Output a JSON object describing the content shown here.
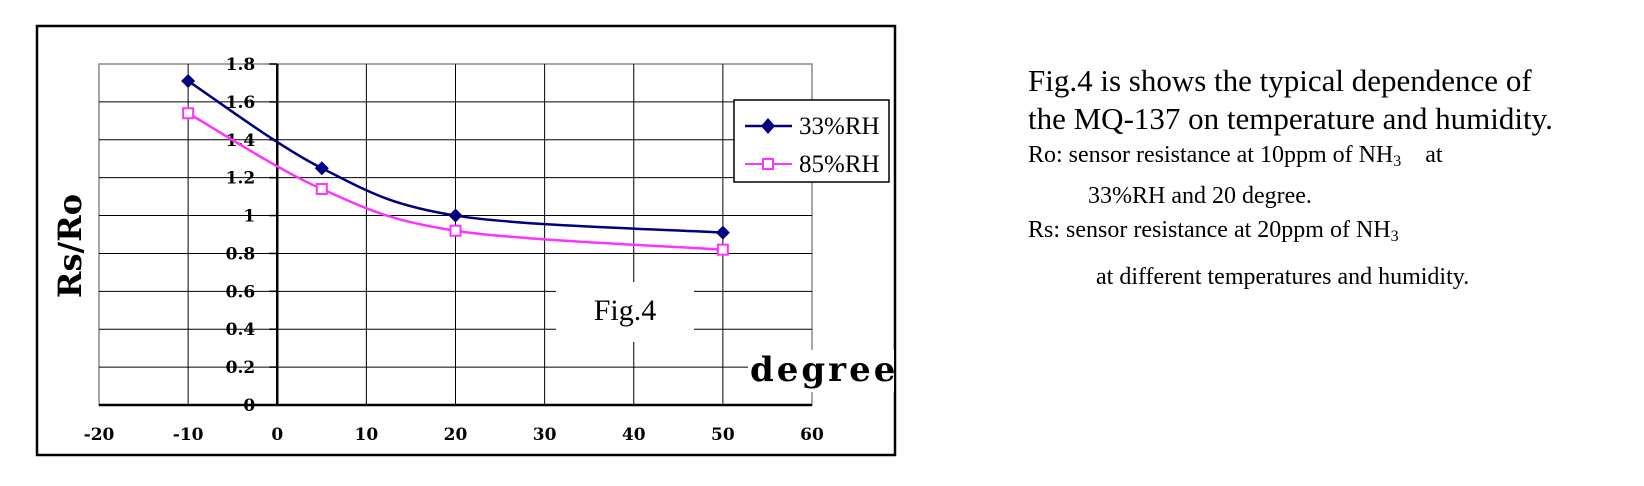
{
  "chart_data": {
    "type": "line",
    "fig_label": "Fig.4",
    "ylabel": "Rs/Ro",
    "xlabel": "degree",
    "xlim": [
      -20,
      60
    ],
    "ylim": [
      0,
      1.8
    ],
    "x_ticks": [
      "-20",
      "-10",
      "0",
      "10",
      "20",
      "30",
      "40",
      "50",
      "60"
    ],
    "y_ticks": [
      "0",
      "0.2",
      "0.4",
      "0.6",
      "0.8",
      "1",
      "1.2",
      "1.4",
      "1.6",
      "1.8"
    ],
    "grid": true,
    "legend_position": "top-right",
    "series": [
      {
        "name": "33%RH",
        "color": "#000080",
        "marker": "diamond",
        "x": [
          -10,
          5,
          20,
          50
        ],
        "y": [
          1.71,
          1.25,
          1.0,
          0.91
        ]
      },
      {
        "name": "85%RH",
        "color": "#ff33ff",
        "marker": "square",
        "x": [
          -10,
          5,
          20,
          50
        ],
        "y": [
          1.54,
          1.14,
          0.92,
          0.82
        ]
      }
    ]
  },
  "description": {
    "line1": "Fig.4 is shows the typical dependence of",
    "line2": "the MQ-137 on temperature and humidity.",
    "ro_prefix": "Ro: sensor resistance at 10ppm of NH",
    "ro_sub": "3",
    "ro_suffix": "    at",
    "ro_line2": "33%RH and 20 degree.",
    "rs_prefix": "Rs: sensor resistance at 20ppm of NH",
    "rs_sub": "3",
    "rs_line2": "at different temperatures and humidity."
  }
}
